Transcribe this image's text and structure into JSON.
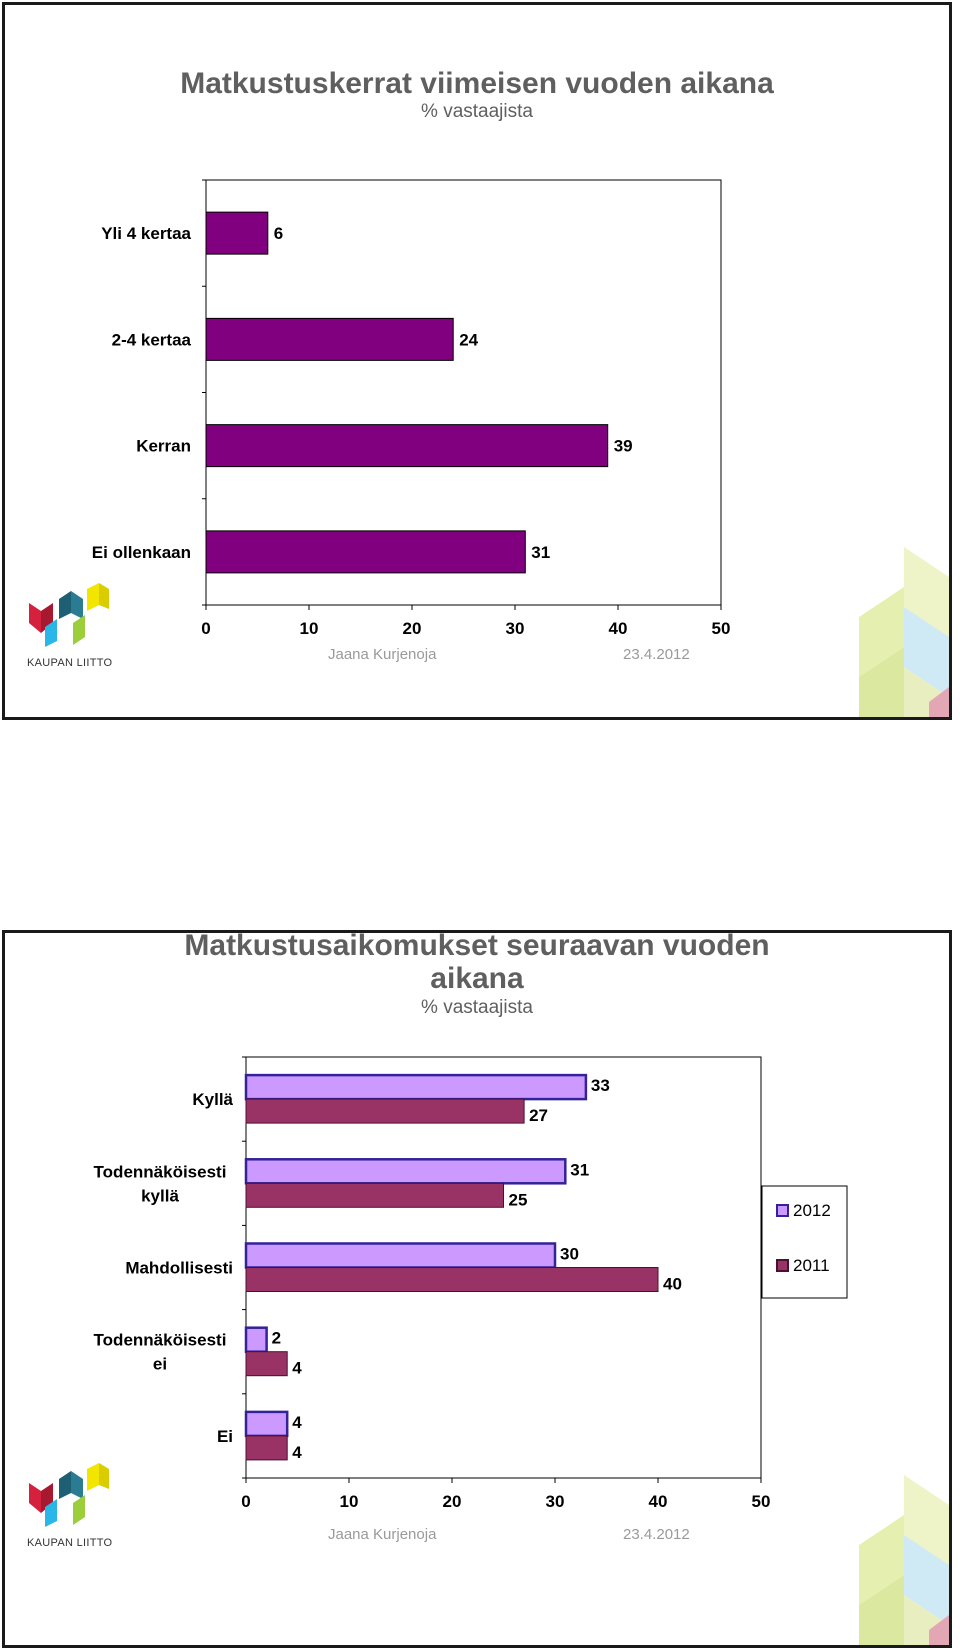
{
  "slides": [
    {
      "title": "Matkustuskerrat viimeisen vuoden aikana",
      "subtitle": "% vastaajista",
      "footer_author": "Jaana Kurjenoja",
      "footer_date": "23.4.2012",
      "logo_text": "KAUPAN LIITTO"
    },
    {
      "title_line1": "Matkustusaikomukset seuraavan vuoden",
      "title_line2": "aikana",
      "subtitle": "% vastaajista",
      "footer_author": "Jaana Kurjenoja",
      "footer_date": "23.4.2012",
      "logo_text": "KAUPAN LIITTO"
    }
  ],
  "chart_data": [
    {
      "type": "bar",
      "orientation": "horizontal",
      "title": "Matkustuskerrat viimeisen vuoden aikana",
      "subtitle": "% vastaajista",
      "categories": [
        "Yli 4 kertaa",
        "2-4 kertaa",
        "Kerran",
        "Ei ollenkaan"
      ],
      "values": [
        6,
        24,
        39,
        31
      ],
      "xlim": [
        0,
        50
      ],
      "xticks": [
        0,
        10,
        20,
        30,
        40,
        50
      ],
      "grid": false,
      "color": "#800080"
    },
    {
      "type": "bar",
      "orientation": "horizontal",
      "title": "Matkustusaikomukset seuraavan vuoden aikana",
      "subtitle": "% vastaajista",
      "categories": [
        [
          "Kyllä"
        ],
        [
          "Todennäköisesti",
          "kyllä"
        ],
        [
          "Mahdollisesti"
        ],
        [
          "Todennäköisesti",
          "ei"
        ],
        [
          "Ei"
        ]
      ],
      "series": [
        {
          "name": "2012",
          "values": [
            33,
            31,
            30,
            2,
            4
          ],
          "color": "#cc99ff",
          "stroke": "#33229a"
        },
        {
          "name": "2011",
          "values": [
            27,
            25,
            40,
            4,
            4
          ],
          "color": "#993366",
          "stroke": "#4a1030"
        }
      ],
      "xlim": [
        0,
        50
      ],
      "xticks": [
        0,
        10,
        20,
        30,
        40,
        50
      ],
      "grid": false,
      "legend": "right"
    }
  ]
}
